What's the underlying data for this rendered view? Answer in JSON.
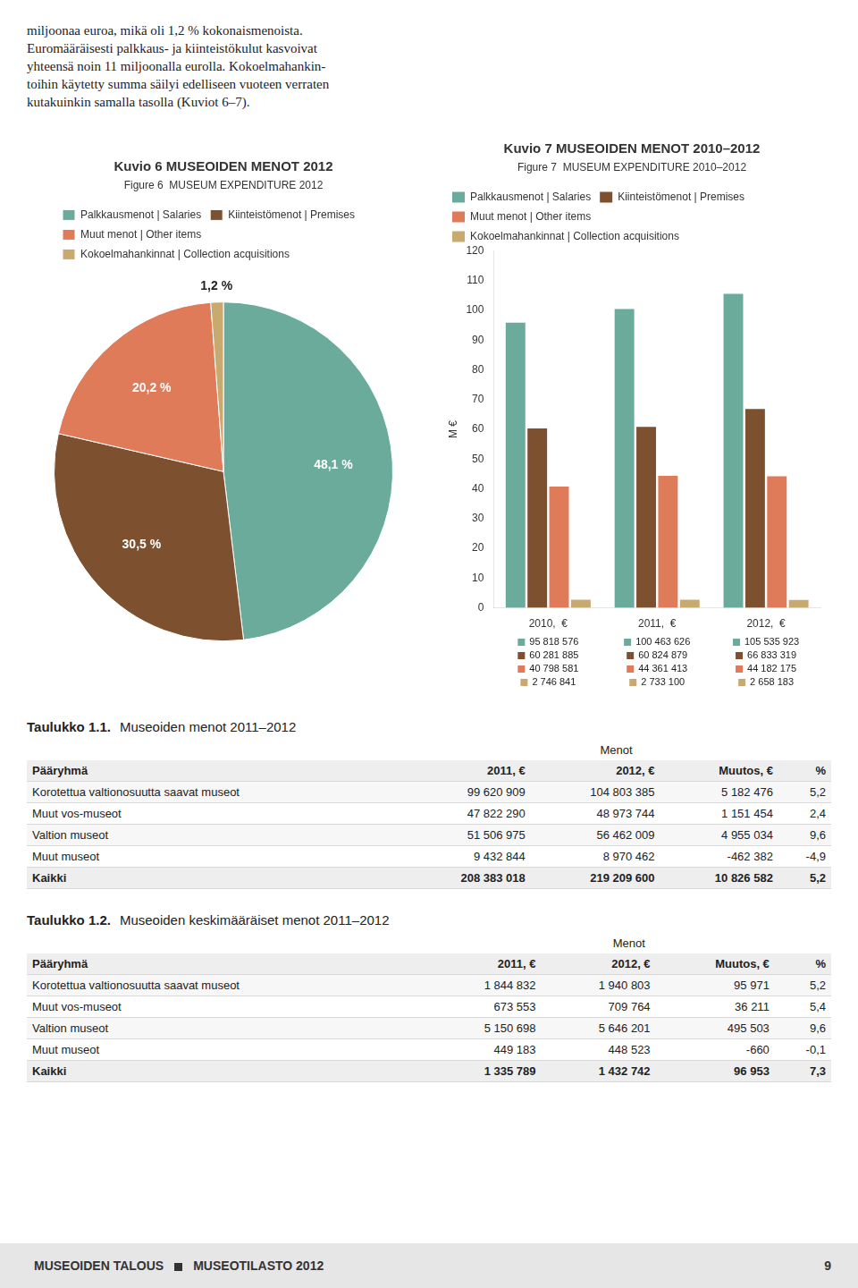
{
  "chart_data": [
    {
      "type": "text",
      "annotations": [
        "miljoonaa euroa, mikä oli 1,2 % kokonaismenoista.",
        "Euromääräisesti palkkaus- ja kiinteistökulut kasvoivat",
        "yhteensä noin 11 miljoonalla eurolla. Kokoelmahankin-",
        "toihin käytetty summa säilyi edelliseen vuoteen verraten",
        "kutakuinkin samalla tasolla (Kuviot 6–7)."
      ]
    },
    {
      "type": "pie",
      "title": "Kuvio 6 MUSEOIDEN MENOT 2012",
      "subtitle": "Figure 6  MUSEUM EXPENDITURE 2012",
      "categories": [
        "Palkkausmenot | Salaries",
        "Kiinteistömenot | Premises",
        "Muut menot | Other items",
        "Kokoelmahankinnat | Collection acquisitions"
      ],
      "values": [
        48.1,
        30.5,
        20.2,
        1.2
      ],
      "value_labels": [
        "48,1 %",
        "30,5 %",
        "20,2 %",
        "1,2 %"
      ],
      "colors": [
        "#6aab9c",
        "#7d5030",
        "#e07b5a",
        "#c8a96e"
      ],
      "data_labels": true,
      "legend": "top"
    },
    {
      "type": "bar",
      "title": "Kuvio 7 MUSEOIDEN MENOT 2010–2012",
      "subtitle": "Figure 7  MUSEUM EXPENDITURE 2010–2012",
      "categories": [
        "2010,  €",
        "2011,  €",
        "2012,  €"
      ],
      "series": [
        {
          "name": "Palkkausmenot | Salaries",
          "color": "#6aab9c",
          "values": [
            95.818576,
            100.463626,
            105.535923
          ],
          "value_labels": [
            "95 818 576",
            "100 463 626",
            "105 535 923"
          ]
        },
        {
          "name": "Kiinteistömenot | Premises",
          "color": "#7d5030",
          "values": [
            60.281885,
            60.824879,
            66.833319
          ],
          "value_labels": [
            "60 281 885",
            "60 824 879",
            "66 833 319"
          ]
        },
        {
          "name": "Muut menot | Other items",
          "color": "#e07b5a",
          "values": [
            40.798581,
            44.361413,
            44.182175
          ],
          "value_labels": [
            "40 798 581",
            "44 361 413",
            "44 182 175"
          ]
        },
        {
          "name": "Kokoelmahankinnat | Collection acquisitions",
          "color": "#c8a96e",
          "values": [
            2.746841,
            2.7331,
            2.658183
          ],
          "value_labels": [
            "2 746 841",
            "2 733 100",
            "2 658 183"
          ]
        }
      ],
      "ylabel": "M €",
      "ylim": [
        0,
        120
      ],
      "yticks": [
        0,
        10,
        20,
        30,
        40,
        50,
        60,
        70,
        80,
        90,
        100,
        110,
        120
      ],
      "grid": false,
      "legend": "top",
      "data_labels": true
    },
    {
      "type": "table",
      "title": "Taulukko 1.1.",
      "subtitle": "Museoiden menot 2011–2012",
      "column_group": "Menot",
      "columns": [
        "Pääryhmä",
        "2011, €",
        "2012, €",
        "Muutos, €",
        "%"
      ],
      "rows": [
        [
          "Korotettua valtionosuutta saavat museot",
          "99 620 909",
          "104 803 385",
          "5 182 476",
          "5,2"
        ],
        [
          "Muut vos-museot",
          "47 822 290",
          "48 973 744",
          "1 151 454",
          "2,4"
        ],
        [
          "Valtion museot",
          "51 506 975",
          "56 462 009",
          "4 955 034",
          "9,6"
        ],
        [
          "Muut museot",
          "9 432 844",
          "8 970 462",
          "-462 382",
          "-4,9"
        ],
        [
          "Kaikki",
          "208 383 018",
          "219 209 600",
          "10 826 582",
          "5,2"
        ]
      ]
    },
    {
      "type": "table",
      "title": "Taulukko 1.2.",
      "subtitle": "Museoiden keskimääräiset menot 2011–2012",
      "column_group": "Menot",
      "columns": [
        "Pääryhmä",
        "2011, €",
        "2012, €",
        "Muutos, €",
        "%"
      ],
      "rows": [
        [
          "Korotettua valtionosuutta saavat museot",
          "1 844 832",
          "1 940 803",
          "95 971",
          "5,2"
        ],
        [
          "Muut vos-museot",
          "673 553",
          "709 764",
          "36 211",
          "5,4"
        ],
        [
          "Valtion museot",
          "5 150 698",
          "5 646 201",
          "495 503",
          "9,6"
        ],
        [
          "Muut museot",
          "449 183",
          "448 523",
          "-660",
          "-0,1"
        ],
        [
          "Kaikki",
          "1 335 789",
          "1 432 742",
          "96 953",
          "7,3"
        ]
      ]
    },
    {
      "type": "text",
      "annotations": [
        "MUSEOIDEN TALOUS",
        "MUSEOTILASTO 2012",
        "9"
      ]
    }
  ]
}
